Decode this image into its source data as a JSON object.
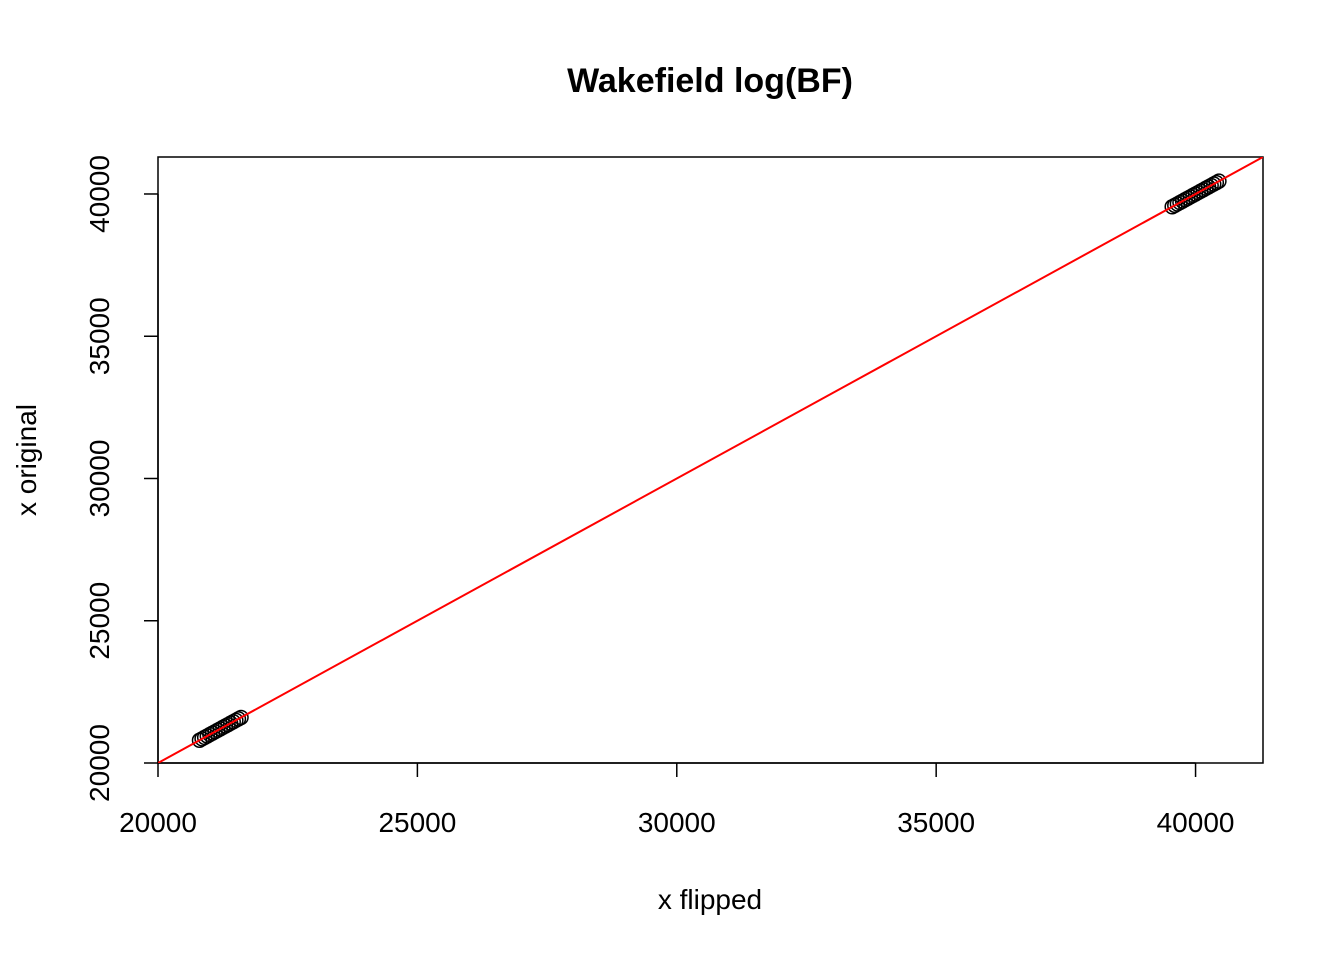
{
  "chart_data": {
    "type": "scatter",
    "title": "Wakefield log(BF)",
    "xlabel": "x flipped",
    "ylabel": "x original",
    "xlim": [
      20000,
      41300
    ],
    "ylim": [
      20000,
      41300
    ],
    "x_ticks": [
      20000,
      25000,
      30000,
      35000,
      40000
    ],
    "y_ticks": [
      20000,
      25000,
      30000,
      35000,
      40000
    ],
    "x_tick_labels": [
      "20000",
      "25000",
      "30000",
      "35000",
      "40000"
    ],
    "y_tick_labels": [
      "20000",
      "25000",
      "30000",
      "35000",
      "40000"
    ],
    "grid": false,
    "marker": "open-circle",
    "point_color": "#000000",
    "reference_line": {
      "type": "identity",
      "color": "#ff0000"
    },
    "clusters": [
      {
        "x_start": 20800,
        "x_end": 21600,
        "count": 17
      },
      {
        "x_start": 39550,
        "x_end": 40450,
        "count": 19
      }
    ]
  }
}
